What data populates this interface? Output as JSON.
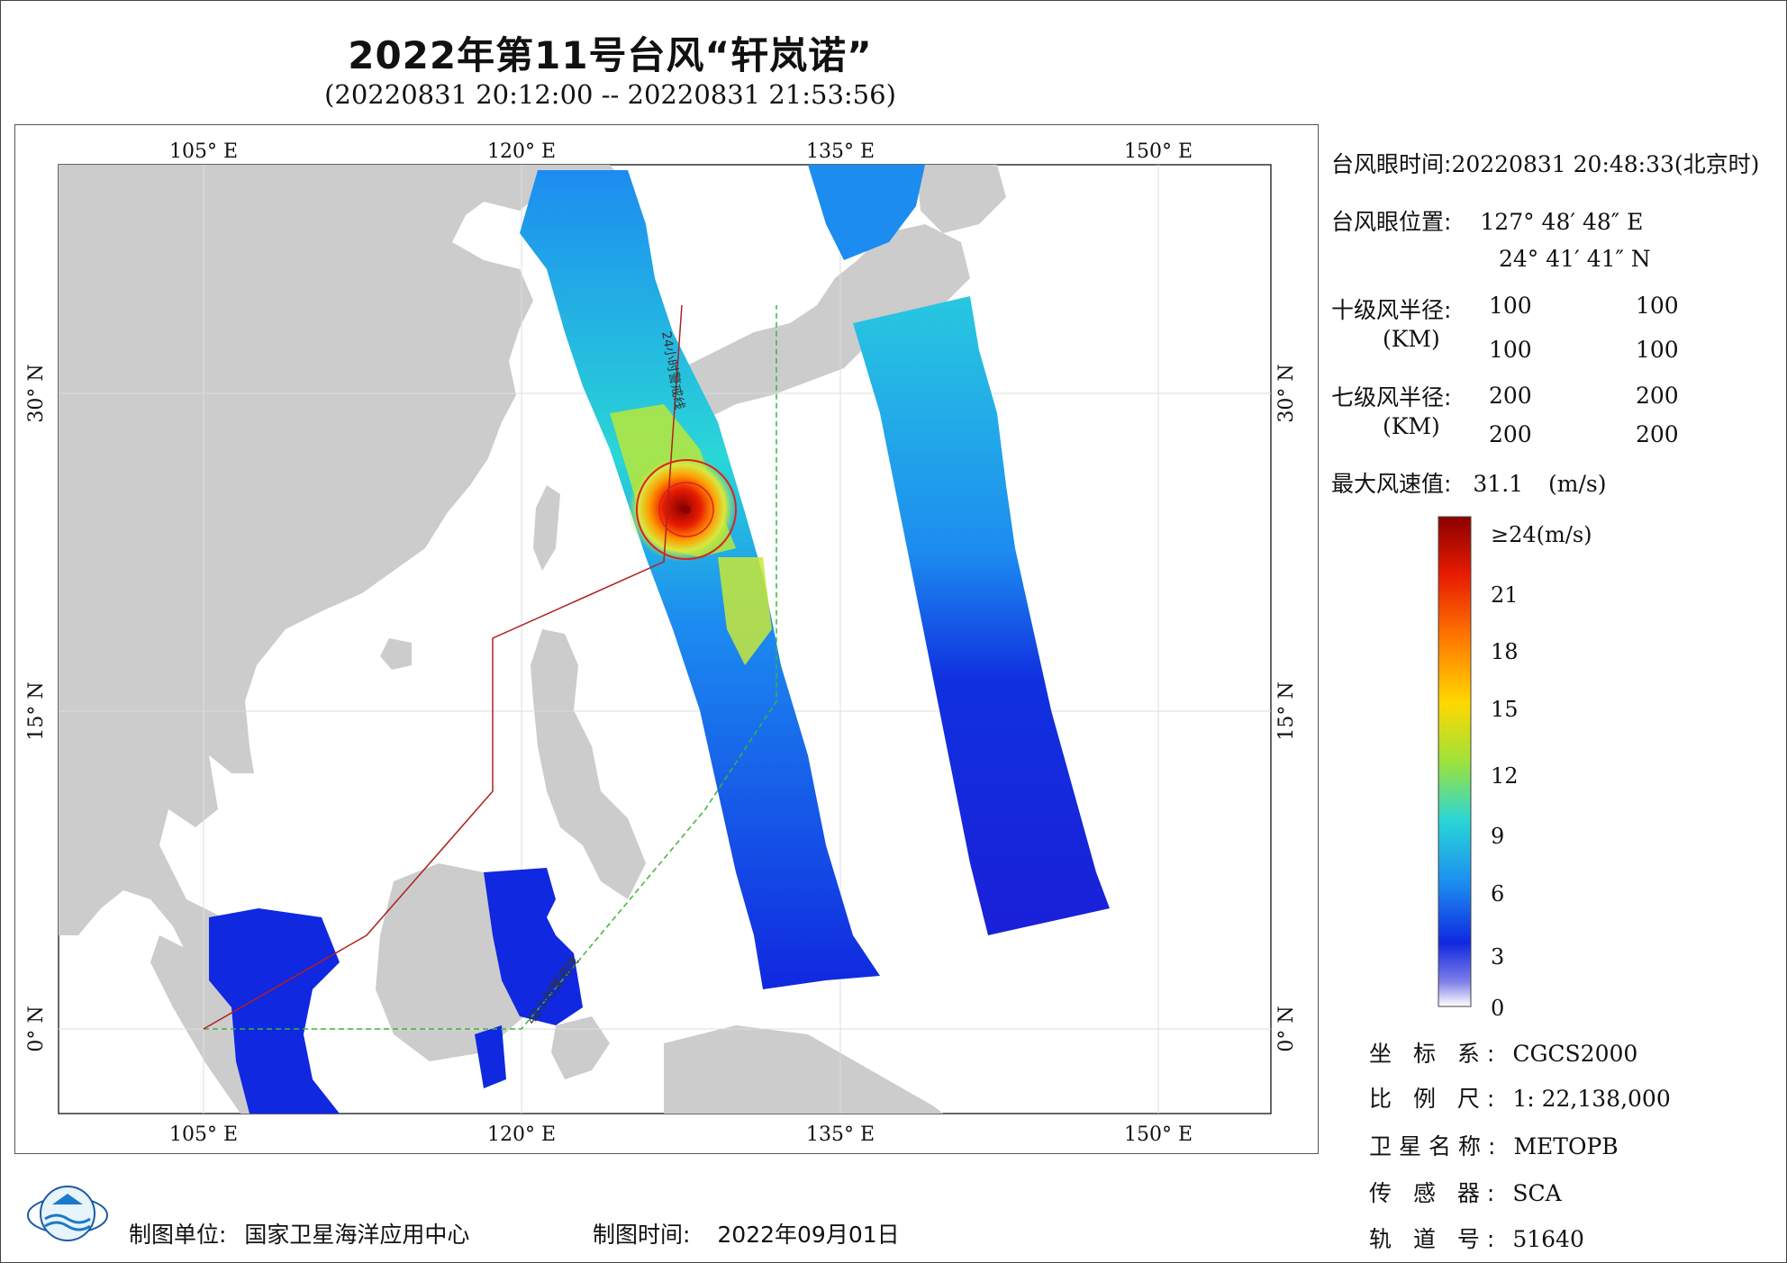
{
  "title": "2022年第11号台风“轩岚诺”",
  "subtitle": "(20220831 20:12:00 -- 20220831 21:53:56)",
  "lon_ticks": [
    "105° E",
    "120° E",
    "135° E",
    "150° E"
  ],
  "lat_ticks": [
    "30° N",
    "15° N",
    "0° N"
  ],
  "map_labels": {
    "line_24h": "24小时警戒线",
    "line_48h": "48小时警戒线"
  },
  "info": {
    "eye_time_label": "台风眼时间:",
    "eye_time_value": "20220831 20:48:33(北京时)",
    "eye_pos_label": "台风眼位置:",
    "eye_lon": "127° 48′ 48″ E",
    "eye_lat": "24° 41′ 41″ N",
    "r10_label": "十级风半径:",
    "r10_values": [
      "100",
      "100",
      "100",
      "100"
    ],
    "km_label": "(KM)",
    "r7_label": "七级风半径:",
    "r7_values": [
      "200",
      "200",
      "200",
      "200"
    ],
    "max_wind_label": "最大风速值:",
    "max_wind_value": "31.1",
    "max_wind_unit": "(m/s)"
  },
  "colorbar": {
    "labels": [
      "≥24(m/s)",
      "21",
      "18",
      "15",
      "12",
      "9",
      "6",
      "3",
      "0"
    ],
    "colors": [
      "#8b0000",
      "#e81c00",
      "#ff7a00",
      "#ffd800",
      "#9ee23a",
      "#2ad6d6",
      "#1c8cf0",
      "#1028e0",
      "#8080e8",
      "#ffffff"
    ]
  },
  "meta": {
    "crs_label": "坐 标 系:",
    "crs_value": "CGCS2000",
    "scale_label": "比 例 尺:",
    "scale_value": "1: 22,138,000",
    "sat_label": "卫星名称:",
    "sat_value": "METOPB",
    "sensor_label": "传 感 器:",
    "sensor_value": "SCA",
    "orbit_label": "轨 道 号:",
    "orbit_value": "51640"
  },
  "footer": {
    "unit_label": "制图单位:",
    "unit_value": "国家卫星海洋应用中心",
    "time_label": "制图时间:",
    "time_value": "2022年09月01日"
  },
  "colors": {
    "land": "#cccccc",
    "ocean": "#ffffff",
    "line_24h": "#b02020",
    "line_48h": "#3cb43c",
    "typhoon_circle": "#e02020"
  },
  "icons": {
    "logo": "nsoas-logo"
  }
}
